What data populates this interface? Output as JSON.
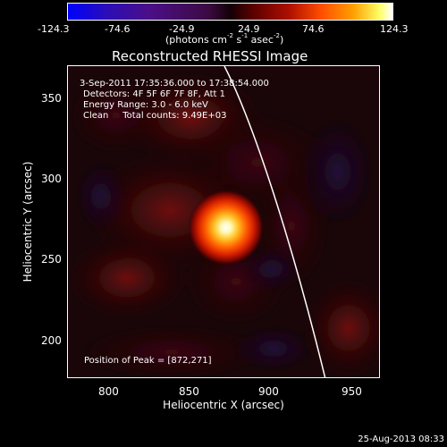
{
  "colorbar": {
    "ticks": [
      "-124.3",
      "-74.6",
      "-24.9",
      "24.9",
      "74.6",
      "124.3"
    ],
    "unit": {
      "prefix": "(photons cm",
      "cm_exp": "-2",
      "s": " s",
      "s_exp": "-1",
      "asec": " asec",
      "asec_exp": "-2",
      "suffix": ")"
    }
  },
  "title": "Reconstructed RHESSI Image",
  "info": {
    "time_range": "3-Sep-2011 17:35:36.000 to 17:38:54.000",
    "detectors": "Detectors: 4F 5F 6F 7F 8F, Att 1",
    "energy_range": "Energy Range: 3.0 - 6.0 keV",
    "algorithm_counts": "Clean     Total counts: 9.49E+03",
    "peak_position": "Position of Peak = [872,271]"
  },
  "axes": {
    "xlabel": "Heliocentric X (arcsec)",
    "ylabel": "Heliocentric Y (arcsec)",
    "xticks": [
      "800",
      "850",
      "900",
      "950"
    ],
    "yticks": [
      "350",
      "300",
      "250",
      "200"
    ]
  },
  "chart_data": {
    "type": "heatmap",
    "title": "Reconstructed RHESSI Image",
    "xlabel": "Heliocentric X (arcsec)",
    "ylabel": "Heliocentric Y (arcsec)",
    "xlim": [
      775,
      967
    ],
    "ylim": [
      178,
      370
    ],
    "xticks": [
      800,
      850,
      900,
      950
    ],
    "yticks": [
      200,
      250,
      300,
      350
    ],
    "colorbar_range": [
      -124.3,
      124.3
    ],
    "colorbar_ticks": [
      -124.3,
      -74.6,
      -24.9,
      24.9,
      74.6,
      124.3
    ],
    "peak": {
      "x": 872,
      "y": 271
    },
    "colors": {
      "min": "#0000ff",
      "mid": "#140006",
      "max": "#ffffff"
    }
  },
  "timestamp": "25-Aug-2013 08:33"
}
